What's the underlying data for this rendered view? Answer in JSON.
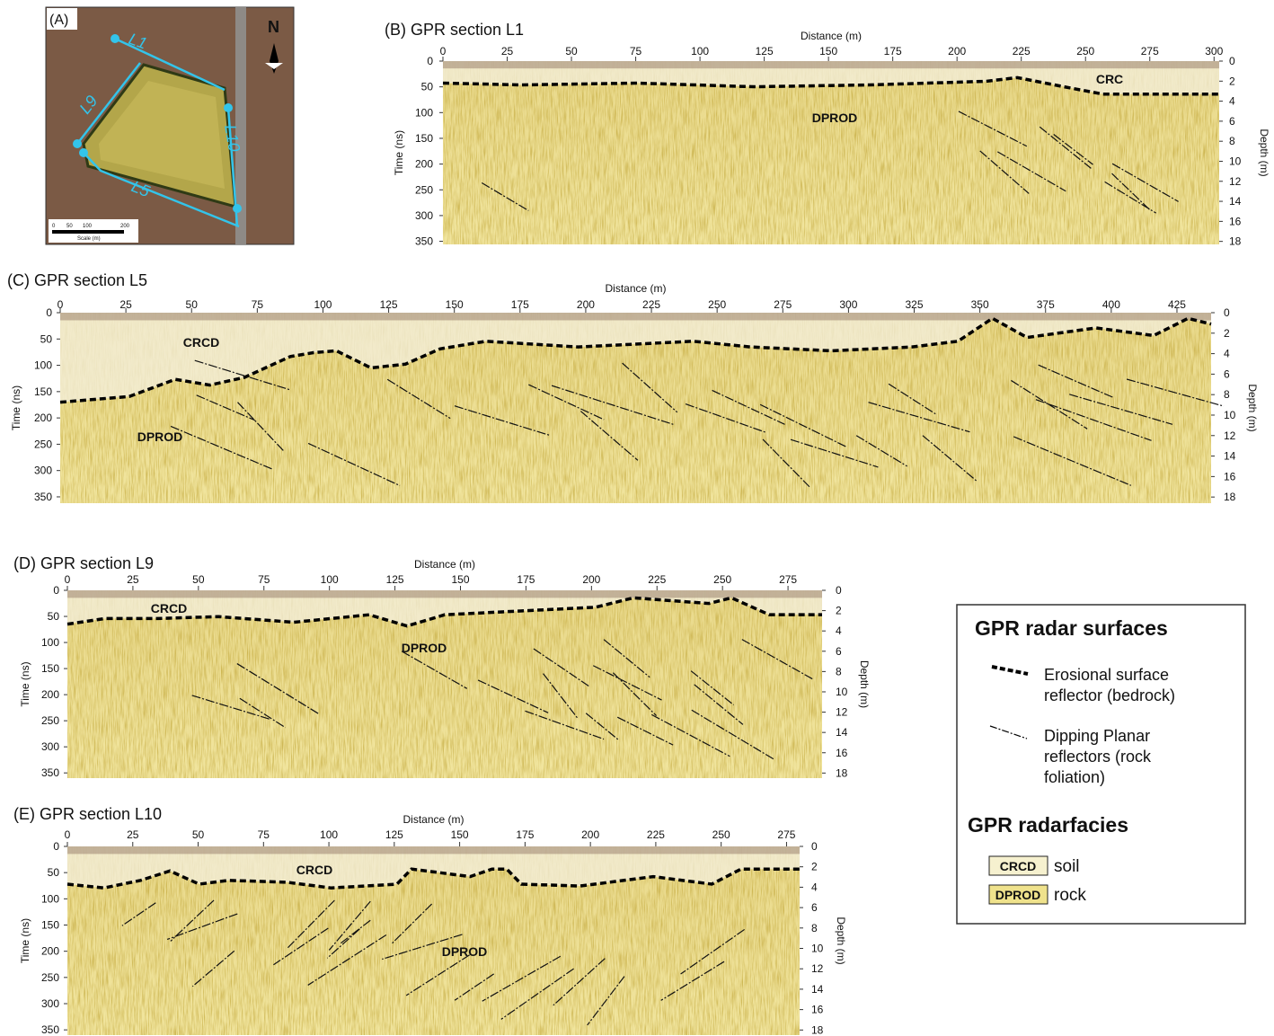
{
  "map": {
    "label": "(A)",
    "north": "N",
    "lines": [
      "L1",
      "L9",
      "L10",
      "L5"
    ],
    "scale_ticks": [
      "0",
      "50",
      "100",
      "200"
    ],
    "scale_label": "Scale (m)"
  },
  "panels": [
    {
      "title": "(B) GPR section L1",
      "x_label": "Distance (m)",
      "y_label": "Time (ns)",
      "y2_label": "Depth (m)",
      "xlim": [
        0,
        302
      ],
      "ylim": [
        0,
        356
      ],
      "y2lim": [
        0,
        18.3
      ],
      "xticks": [
        0,
        25,
        50,
        75,
        100,
        125,
        150,
        175,
        200,
        225,
        250,
        275,
        300
      ],
      "yticks": [
        0,
        50,
        100,
        150,
        200,
        250,
        300,
        350
      ],
      "y2ticks": [
        0,
        2,
        4,
        6,
        8,
        10,
        12,
        14,
        16,
        18
      ],
      "facies": [
        "DPROD",
        "CRC"
      ]
    },
    {
      "title": "(C) GPR section L5",
      "x_label": "Distance (m)",
      "y_label": "Time (ns)",
      "y2_label": "Depth (m)",
      "xlim": [
        0,
        438
      ],
      "ylim": [
        0,
        362
      ],
      "y2lim": [
        0,
        18.6
      ],
      "xticks": [
        0,
        25,
        50,
        75,
        100,
        125,
        150,
        175,
        200,
        225,
        250,
        275,
        300,
        325,
        350,
        375,
        400,
        425
      ],
      "yticks": [
        0,
        50,
        100,
        150,
        200,
        250,
        300,
        350
      ],
      "y2ticks": [
        0,
        2,
        4,
        6,
        8,
        10,
        12,
        14,
        16,
        18
      ],
      "facies": [
        "CRCD",
        "DPROD"
      ]
    },
    {
      "title": "(D) GPR section L9",
      "x_label": "Distance (m)",
      "y_label": "Time (ns)",
      "y2_label": "Depth (m)",
      "xlim": [
        0,
        288
      ],
      "ylim": [
        0,
        360
      ],
      "y2lim": [
        0,
        18.5
      ],
      "xticks": [
        0,
        25,
        50,
        75,
        100,
        125,
        150,
        175,
        200,
        225,
        250,
        275
      ],
      "yticks": [
        0,
        50,
        100,
        150,
        200,
        250,
        300,
        350
      ],
      "y2ticks": [
        0,
        2,
        4,
        6,
        8,
        10,
        12,
        14,
        16,
        18
      ],
      "facies": [
        "CRCD",
        "DPROD"
      ]
    },
    {
      "title": "(E) GPR section L10",
      "x_label": "Distance (m)",
      "y_label": "Time (ns)",
      "y2_label": "Depth (m)",
      "xlim": [
        0,
        280
      ],
      "ylim": [
        0,
        360
      ],
      "y2lim": [
        0,
        18.5
      ],
      "xticks": [
        0,
        25,
        50,
        75,
        100,
        125,
        150,
        175,
        200,
        225,
        250,
        275
      ],
      "yticks": [
        0,
        50,
        100,
        150,
        200,
        250,
        300,
        350
      ],
      "y2ticks": [
        0,
        2,
        4,
        6,
        8,
        10,
        12,
        14,
        16,
        18
      ],
      "facies": [
        "CRCD",
        "DPROD"
      ]
    }
  ],
  "legend": {
    "surfaces_title": "GPR radar surfaces",
    "surfaces": [
      [
        "Erosional surface",
        "reflector (bedrock)"
      ],
      [
        "Dipping Planar",
        "reflectors (rock",
        "foliation)"
      ]
    ],
    "facies_title": "GPR radarfacies",
    "facies": [
      {
        "code": "CRCD",
        "text": "soil"
      },
      {
        "code": "DPROD",
        "text": "rock"
      }
    ]
  }
}
